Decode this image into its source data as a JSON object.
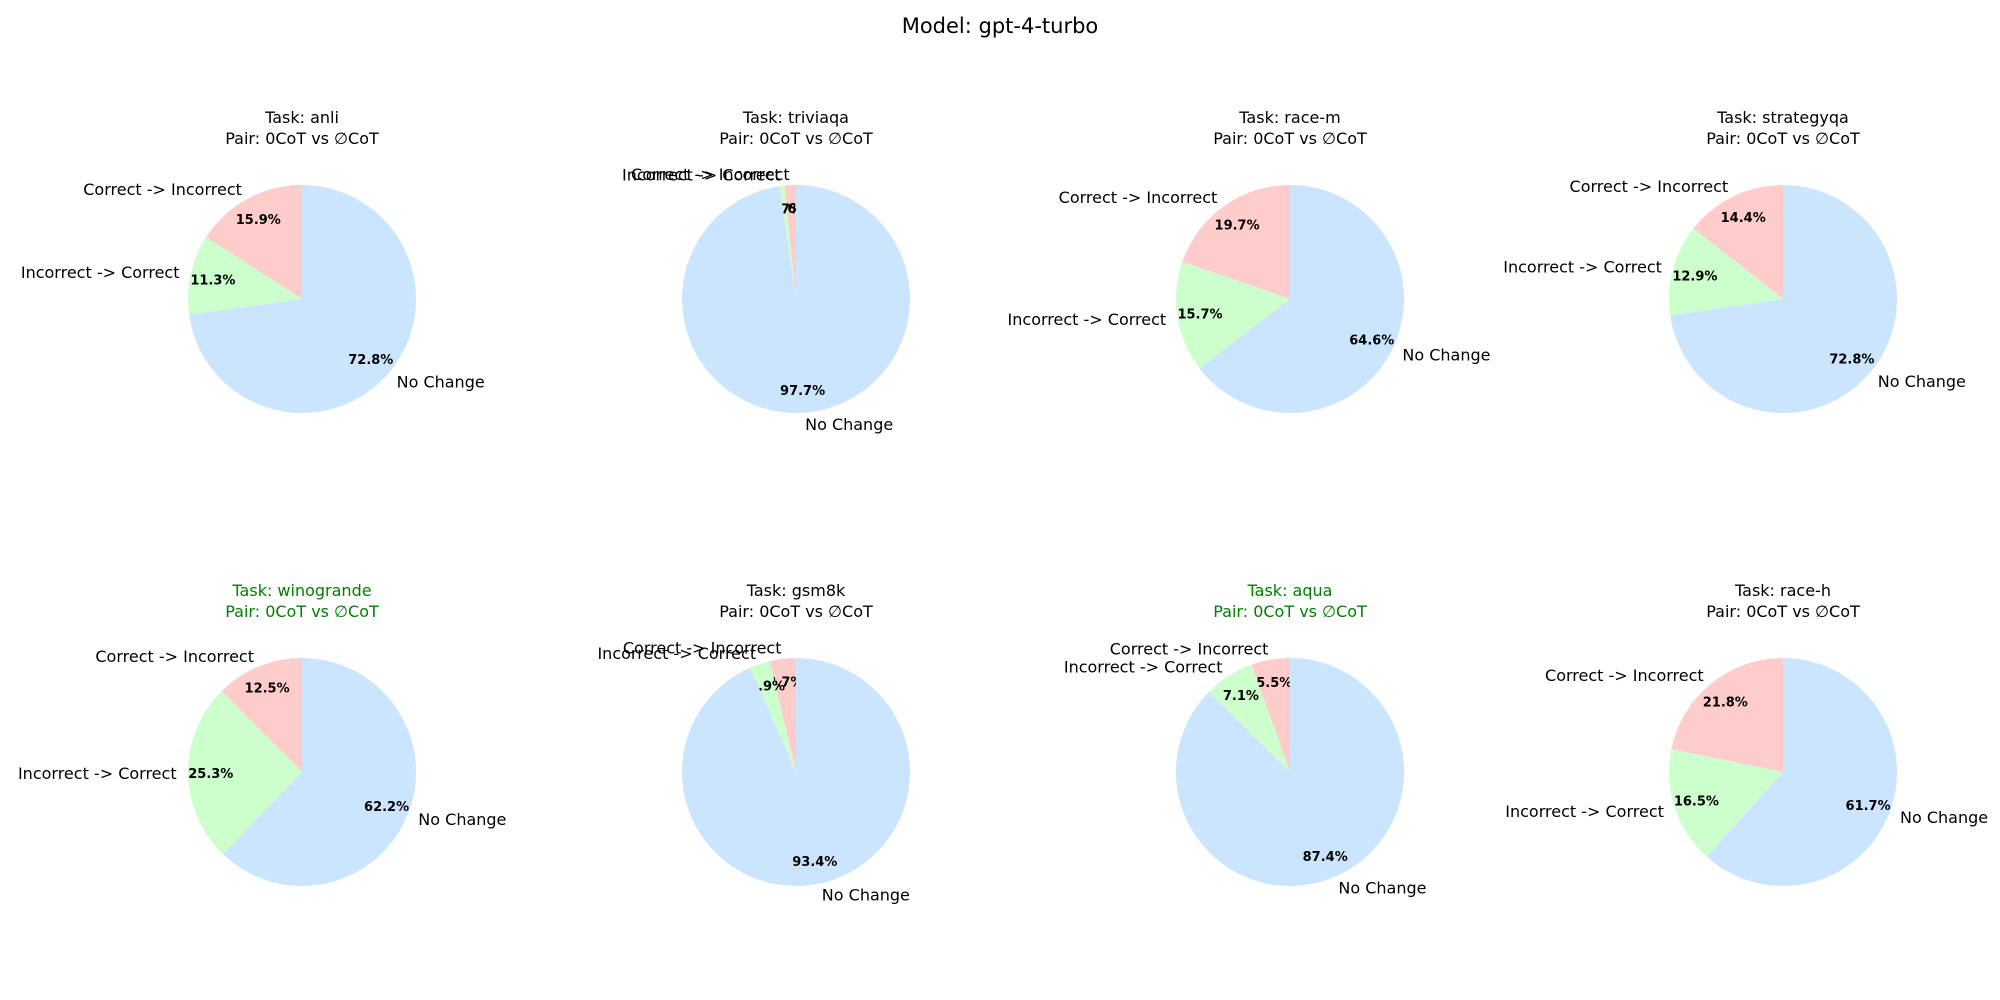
{
  "figure": {
    "title": "Model: gpt-4-turbo"
  },
  "colors": {
    "correct_to_incorrect": "#ffcccc",
    "incorrect_to_correct": "#ccffcc",
    "no_change": "#cce5ff",
    "title_default": "#000000",
    "title_highlight": "#008000"
  },
  "chart_data": [
    {
      "type": "pie",
      "title": "Task: anli",
      "subtitle": "Pair: 0CoT vs ∅CoT",
      "title_color": "#000000",
      "labels": [
        "Correct -> Incorrect",
        "Incorrect -> Correct",
        "No Change"
      ],
      "values": [
        15.9,
        11.3,
        72.8
      ],
      "pct_labels": [
        "15.9%",
        "11.3%",
        "72.8%"
      ]
    },
    {
      "type": "pie",
      "title": "Task: triviaqa",
      "subtitle": "Pair: 0CoT vs ∅CoT",
      "title_color": "#000000",
      "labels": [
        "Correct -> Incorrect",
        "Incorrect -> Correct",
        "No Change"
      ],
      "values": [
        1.6,
        0.7,
        97.7
      ],
      "pct_labels": [
        "1.6%",
        "0.7%",
        "97.7%"
      ]
    },
    {
      "type": "pie",
      "title": "Task: race-m",
      "subtitle": "Pair: 0CoT vs ∅CoT",
      "title_color": "#000000",
      "labels": [
        "Correct -> Incorrect",
        "Incorrect -> Correct",
        "No Change"
      ],
      "values": [
        19.7,
        15.7,
        64.6
      ],
      "pct_labels": [
        "19.7%",
        "15.7%",
        "64.6%"
      ]
    },
    {
      "type": "pie",
      "title": "Task: strategyqa",
      "subtitle": "Pair: 0CoT vs ∅CoT",
      "title_color": "#000000",
      "labels": [
        "Correct -> Incorrect",
        "Incorrect -> Correct",
        "No Change"
      ],
      "values": [
        14.4,
        12.9,
        72.8
      ],
      "pct_labels": [
        "14.4%",
        "12.9%",
        "72.8%"
      ]
    },
    {
      "type": "pie",
      "title": "Task: winogrande",
      "subtitle": "Pair: 0CoT vs ∅CoT",
      "title_color": "#008000",
      "labels": [
        "Correct -> Incorrect",
        "Incorrect -> Correct",
        "No Change"
      ],
      "values": [
        12.5,
        25.3,
        62.2
      ],
      "pct_labels": [
        "12.5%",
        "25.3%",
        "62.2%"
      ]
    },
    {
      "type": "pie",
      "title": "Task: gsm8k",
      "subtitle": "Pair: 0CoT vs ∅CoT",
      "title_color": "#000000",
      "labels": [
        "Correct -> Incorrect",
        "Incorrect -> Correct",
        "No Change"
      ],
      "values": [
        3.7,
        2.9,
        93.4
      ],
      "pct_labels": [
        "3.7%",
        "2.9%",
        "93.4%"
      ]
    },
    {
      "type": "pie",
      "title": "Task: aqua",
      "subtitle": "Pair: 0CoT vs ∅CoT",
      "title_color": "#008000",
      "labels": [
        "Correct -> Incorrect",
        "Incorrect -> Correct",
        "No Change"
      ],
      "values": [
        5.5,
        7.1,
        87.4
      ],
      "pct_labels": [
        "5.5%",
        "7.1%",
        "87.4%"
      ]
    },
    {
      "type": "pie",
      "title": "Task: race-h",
      "subtitle": "Pair: 0CoT vs ∅CoT",
      "title_color": "#000000",
      "labels": [
        "Correct -> Incorrect",
        "Incorrect -> Correct",
        "No Change"
      ],
      "values": [
        21.8,
        16.5,
        61.7
      ],
      "pct_labels": [
        "21.8%",
        "16.5%",
        "61.7%"
      ]
    }
  ]
}
